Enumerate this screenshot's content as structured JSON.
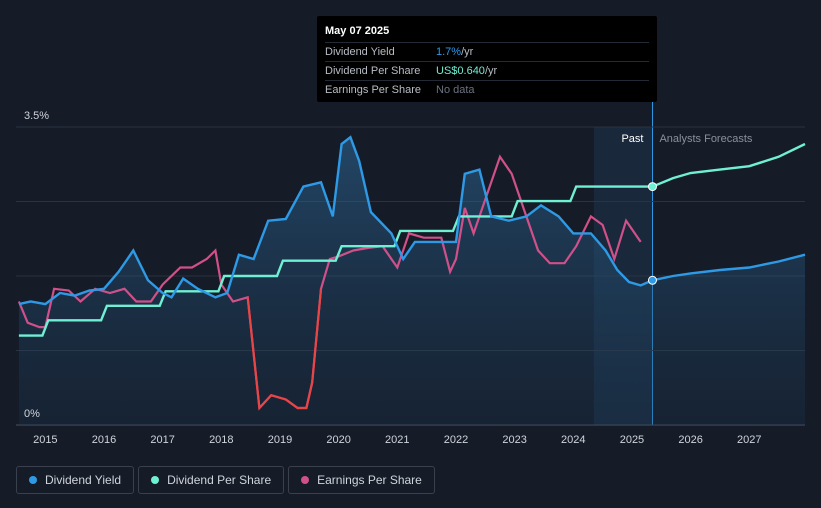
{
  "tooltip": {
    "date": "May 07 2025",
    "rows": [
      {
        "label": "Dividend Yield",
        "value": "1.7%",
        "suffix": " /yr"
      },
      {
        "label": "Dividend Per Share",
        "value": "US$0.640",
        "suffix": " /yr"
      },
      {
        "label": "Earnings Per Share",
        "value": "No data",
        "suffix": ""
      }
    ]
  },
  "regions": {
    "past_label": "Past",
    "forecast_label": "Analysts Forecasts"
  },
  "legend": [
    {
      "label": "Dividend Yield",
      "color": "#2e9ae6"
    },
    {
      "label": "Dividend Per Share",
      "color": "#6ff0d4"
    },
    {
      "label": "Earnings Per Share",
      "color": "#d0508a"
    }
  ],
  "colors": {
    "background": "#151b27",
    "yield": "#2e9ae6",
    "dps": "#6ff0d4",
    "eps": "#d0508a",
    "eps_negative": "#e84545"
  },
  "chart_data": {
    "type": "line",
    "x_ticks": [
      "2015",
      "2016",
      "2017",
      "2018",
      "2019",
      "2020",
      "2021",
      "2022",
      "2023",
      "2024",
      "2025",
      "2026",
      "2027"
    ],
    "y_ticks": [
      "0%",
      "3.5%"
    ],
    "ylim": [
      0,
      3.5
    ],
    "xlim": [
      2014.5,
      2027.95
    ],
    "past_region": [
      2024.35,
      2025.35
    ],
    "series": [
      {
        "name": "Dividend Yield",
        "points": [
          [
            2014.55,
            1.42
          ],
          [
            2014.75,
            1.45
          ],
          [
            2015.0,
            1.42
          ],
          [
            2015.25,
            1.55
          ],
          [
            2015.5,
            1.52
          ],
          [
            2015.75,
            1.58
          ],
          [
            2016.0,
            1.6
          ],
          [
            2016.25,
            1.8
          ],
          [
            2016.5,
            2.05
          ],
          [
            2016.75,
            1.7
          ],
          [
            2017.0,
            1.55
          ],
          [
            2017.15,
            1.5
          ],
          [
            2017.35,
            1.72
          ],
          [
            2017.6,
            1.6
          ],
          [
            2017.9,
            1.5
          ],
          [
            2018.1,
            1.55
          ],
          [
            2018.3,
            2.0
          ],
          [
            2018.55,
            1.95
          ],
          [
            2018.8,
            2.4
          ],
          [
            2019.1,
            2.42
          ],
          [
            2019.4,
            2.8
          ],
          [
            2019.7,
            2.85
          ],
          [
            2019.9,
            2.45
          ],
          [
            2020.05,
            3.3
          ],
          [
            2020.2,
            3.38
          ],
          [
            2020.35,
            3.1
          ],
          [
            2020.55,
            2.5
          ],
          [
            2020.9,
            2.25
          ],
          [
            2021.1,
            1.95
          ],
          [
            2021.3,
            2.15
          ],
          [
            2021.6,
            2.15
          ],
          [
            2022.0,
            2.15
          ],
          [
            2022.15,
            2.95
          ],
          [
            2022.4,
            3.0
          ],
          [
            2022.6,
            2.45
          ],
          [
            2022.9,
            2.4
          ],
          [
            2023.2,
            2.45
          ],
          [
            2023.45,
            2.58
          ],
          [
            2023.75,
            2.45
          ],
          [
            2024.0,
            2.25
          ],
          [
            2024.3,
            2.25
          ],
          [
            2024.55,
            2.05
          ],
          [
            2024.75,
            1.82
          ],
          [
            2024.95,
            1.68
          ],
          [
            2025.15,
            1.64
          ],
          [
            2025.35,
            1.7
          ],
          [
            2025.7,
            1.75
          ],
          [
            2026.0,
            1.78
          ],
          [
            2026.5,
            1.82
          ],
          [
            2027.0,
            1.85
          ],
          [
            2027.5,
            1.92
          ],
          [
            2027.95,
            2.0
          ]
        ]
      },
      {
        "name": "Dividend Per Share",
        "points": [
          [
            2014.55,
            1.05
          ],
          [
            2014.95,
            1.05
          ],
          [
            2015.05,
            1.23
          ],
          [
            2015.95,
            1.23
          ],
          [
            2016.05,
            1.4
          ],
          [
            2016.95,
            1.4
          ],
          [
            2017.05,
            1.57
          ],
          [
            2017.95,
            1.57
          ],
          [
            2018.05,
            1.75
          ],
          [
            2018.95,
            1.75
          ],
          [
            2019.05,
            1.93
          ],
          [
            2019.95,
            1.93
          ],
          [
            2020.05,
            2.1
          ],
          [
            2020.95,
            2.1
          ],
          [
            2021.05,
            2.28
          ],
          [
            2021.95,
            2.28
          ],
          [
            2022.05,
            2.45
          ],
          [
            2022.95,
            2.45
          ],
          [
            2023.05,
            2.63
          ],
          [
            2023.95,
            2.63
          ],
          [
            2024.05,
            2.8
          ],
          [
            2024.95,
            2.8
          ],
          [
            2025.35,
            2.8
          ],
          [
            2025.7,
            2.9
          ],
          [
            2026.0,
            2.96
          ],
          [
            2026.5,
            3.0
          ],
          [
            2027.0,
            3.04
          ],
          [
            2027.5,
            3.15
          ],
          [
            2027.95,
            3.3
          ]
        ]
      },
      {
        "name": "Earnings Per Share",
        "points": [
          [
            2014.55,
            1.45
          ],
          [
            2014.7,
            1.2
          ],
          [
            2014.9,
            1.15
          ],
          [
            2015.0,
            1.15
          ],
          [
            2015.15,
            1.6
          ],
          [
            2015.4,
            1.58
          ],
          [
            2015.6,
            1.45
          ],
          [
            2015.85,
            1.6
          ],
          [
            2016.1,
            1.55
          ],
          [
            2016.35,
            1.6
          ],
          [
            2016.55,
            1.45
          ],
          [
            2016.8,
            1.45
          ],
          [
            2017.0,
            1.65
          ],
          [
            2017.3,
            1.85
          ],
          [
            2017.5,
            1.85
          ],
          [
            2017.75,
            1.95
          ],
          [
            2017.9,
            2.05
          ],
          [
            2018.0,
            1.65
          ],
          [
            2018.2,
            1.45
          ],
          [
            2018.45,
            1.5
          ],
          [
            2018.65,
            0.2
          ],
          [
            2018.85,
            0.35
          ],
          [
            2019.1,
            0.3
          ],
          [
            2019.3,
            0.2
          ],
          [
            2019.45,
            0.2
          ],
          [
            2019.55,
            0.5
          ],
          [
            2019.7,
            1.6
          ],
          [
            2019.85,
            1.95
          ],
          [
            2020.0,
            1.98
          ],
          [
            2020.25,
            2.05
          ],
          [
            2020.5,
            2.08
          ],
          [
            2020.75,
            2.1
          ],
          [
            2020.9,
            1.95
          ],
          [
            2021.0,
            1.85
          ],
          [
            2021.2,
            2.25
          ],
          [
            2021.45,
            2.2
          ],
          [
            2021.75,
            2.2
          ],
          [
            2021.9,
            1.8
          ],
          [
            2022.0,
            1.95
          ],
          [
            2022.15,
            2.55
          ],
          [
            2022.3,
            2.25
          ],
          [
            2022.5,
            2.65
          ],
          [
            2022.75,
            3.15
          ],
          [
            2022.95,
            2.95
          ],
          [
            2023.15,
            2.55
          ],
          [
            2023.4,
            2.05
          ],
          [
            2023.6,
            1.9
          ],
          [
            2023.85,
            1.9
          ],
          [
            2024.05,
            2.1
          ],
          [
            2024.3,
            2.45
          ],
          [
            2024.5,
            2.35
          ],
          [
            2024.7,
            1.95
          ],
          [
            2024.9,
            2.4
          ],
          [
            2025.1,
            2.2
          ],
          [
            2025.15,
            2.15
          ]
        ]
      }
    ]
  }
}
